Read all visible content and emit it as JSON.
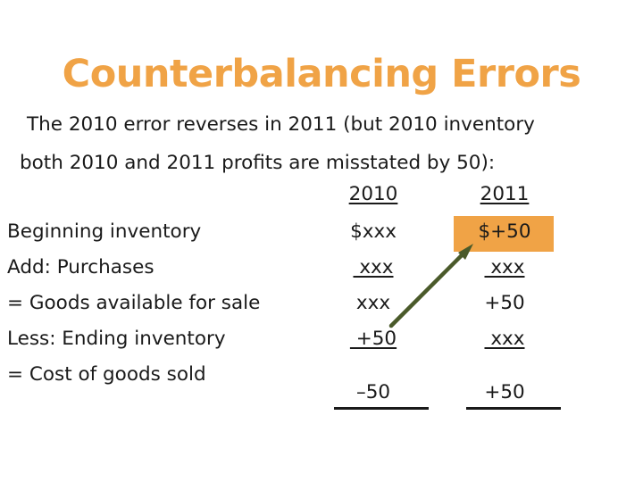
{
  "title": "Counterbalancing Errors",
  "intro": {
    "line1": "The 2010 error reverses in 2011 (but 2010 inventory",
    "line2": "both 2010 and 2011 profits are misstated by 50):"
  },
  "table": {
    "col_headers": [
      "2010",
      "2011"
    ],
    "rows": [
      {
        "label": "Beginning inventory",
        "y2010": "$xxx",
        "y2011": "$+50"
      },
      {
        "label": "Add: Purchases",
        "y2010": " xxx",
        "y2011": " xxx"
      },
      {
        "label": "= Goods available for sale",
        "y2010": "xxx",
        "y2011": "+50"
      },
      {
        "label": "Less: Ending inventory",
        "y2010": " +50",
        "y2011": " xxx"
      },
      {
        "label": "= Cost of goods sold",
        "y2010": "–50",
        "y2011": "+50"
      }
    ]
  },
  "colors": {
    "accent": "#F0A346",
    "arrow": "#4A5A2A",
    "text": "#1a1a1a"
  }
}
